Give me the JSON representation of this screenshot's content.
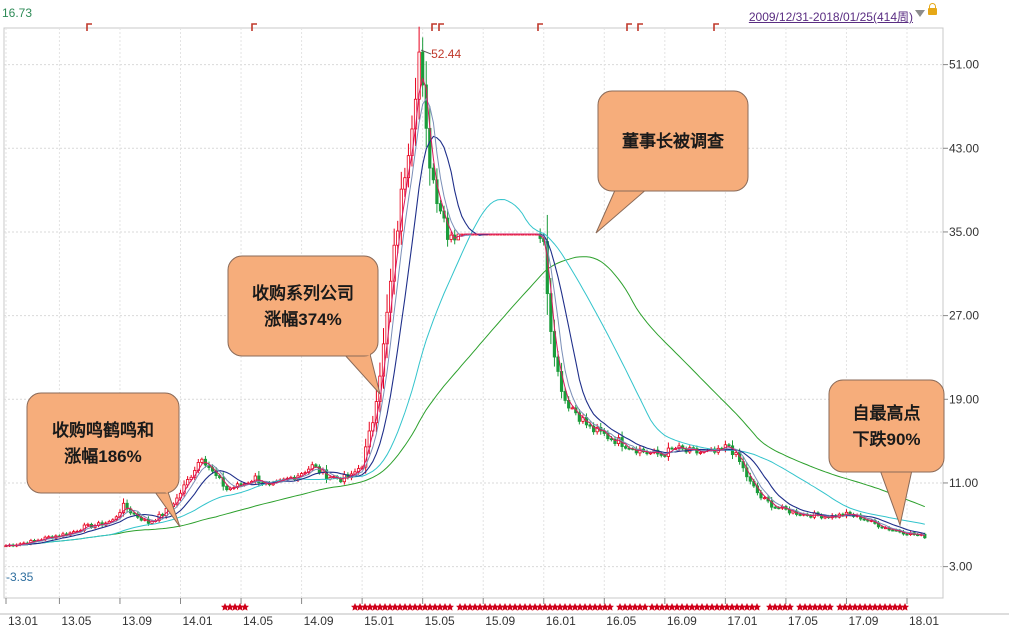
{
  "header": {
    "top_left_value": "16.73",
    "date_range": "2009/12/31-2018/01/25(414周)"
  },
  "chart_data": {
    "type": "candlestick",
    "y_ticks": [
      "51.00",
      "43.00",
      "35.00",
      "27.00",
      "19.00",
      "11.00",
      "3.00"
    ],
    "y_tick_values": [
      51,
      43,
      35,
      27,
      19,
      11,
      3
    ],
    "ylim": [
      0.0,
      54.5
    ],
    "x_ticks": [
      "13.01",
      "13.05",
      "13.09",
      "14.01",
      "14.05",
      "14.09",
      "15.01",
      "15.05",
      "15.09",
      "16.01",
      "16.05",
      "16.09",
      "17.01",
      "17.05",
      "17.09",
      "18.01"
    ],
    "x_tick_index": [
      0,
      15,
      32,
      49,
      66,
      83,
      100,
      117,
      134,
      151,
      168,
      185,
      202,
      219,
      236,
      253
    ],
    "n_bars": 259,
    "high_marker": "52.44",
    "low_marker": "3.35",
    "grid": true,
    "colors": {
      "up": "#e8001c",
      "down": "#1a9c3a",
      "ma_short": "#d81b60",
      "ma_mid": "#7b8fb8",
      "ma_long": "#1f2f8a",
      "ma_cyan": "#33c4cc",
      "ma_green": "#2ca02c"
    },
    "callouts": [
      {
        "lines": [
          "收购鸣鹤鸣和",
          "涨幅186%"
        ]
      },
      {
        "lines": [
          "收购系列公司",
          "涨幅374%"
        ]
      },
      {
        "lines": [
          "董事长被调查"
        ]
      },
      {
        "lines": [
          "自最高点",
          "下跌90%"
        ]
      }
    ]
  }
}
